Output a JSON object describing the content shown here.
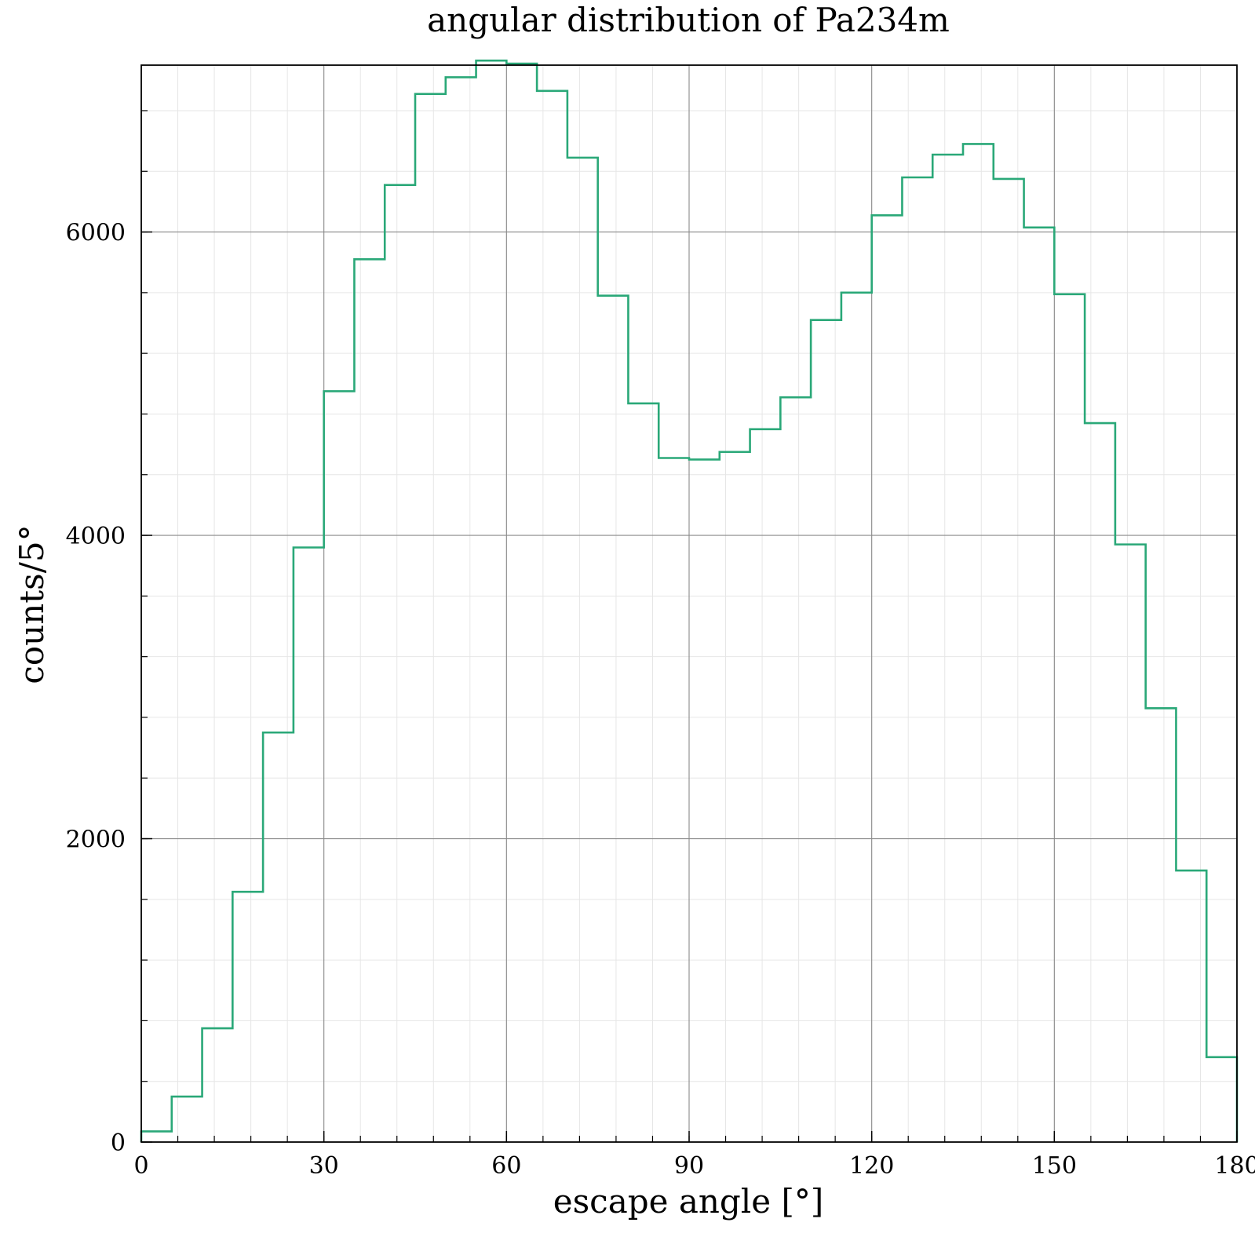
{
  "chart_data": {
    "type": "step",
    "title": "angular distribution of Pa234m",
    "xlabel": "escape angle [°]",
    "ylabel": "counts/5°",
    "xlim": [
      0,
      180
    ],
    "ylim": [
      0,
      7100
    ],
    "xticks": [
      0,
      30,
      60,
      90,
      120,
      150,
      180
    ],
    "yticks": [
      0,
      2000,
      4000,
      6000
    ],
    "x_minor_step": 6,
    "y_minor_step": 400,
    "grid": true,
    "bin_width": 5,
    "bin_edges": [
      0,
      5,
      10,
      15,
      20,
      25,
      30,
      35,
      40,
      45,
      50,
      55,
      60,
      65,
      70,
      75,
      80,
      85,
      90,
      95,
      100,
      105,
      110,
      115,
      120,
      125,
      130,
      135,
      140,
      145,
      150,
      155,
      160,
      165,
      170,
      175,
      180
    ],
    "series": [
      {
        "color": "#2aa878",
        "values": [
          70,
          300,
          750,
          1650,
          2700,
          3920,
          4950,
          5820,
          6310,
          6910,
          7020,
          7130,
          7110,
          6930,
          6490,
          5580,
          4870,
          4510,
          4500,
          4550,
          4700,
          4910,
          5420,
          5600,
          6110,
          6360,
          6510,
          6580,
          6350,
          6030,
          5590,
          4740,
          3940,
          2860,
          1790,
          560
        ]
      }
    ]
  }
}
